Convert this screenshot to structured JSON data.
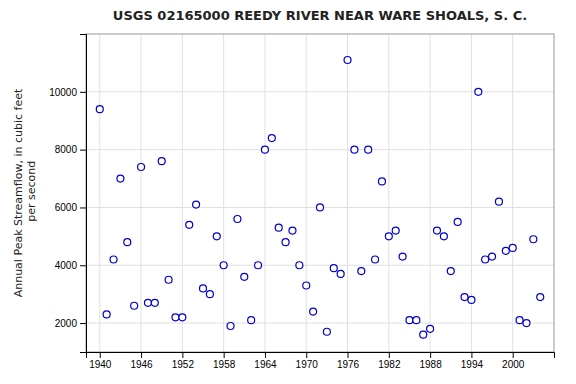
{
  "chart_data": {
    "type": "scatter",
    "title": "USGS 02165000 REEDY RIVER NEAR WARE SHOALS, S. C.",
    "ylabel": "Annual Peak Streamflow, in cubic feet\n per second",
    "xlim": [
      1938,
      2006
    ],
    "ylim": [
      1000,
      12000
    ],
    "xticks": [
      1940,
      1946,
      1952,
      1958,
      1964,
      1970,
      1976,
      1982,
      1988,
      1994,
      2000
    ],
    "yticks": [
      2000,
      4000,
      6000,
      8000,
      10000
    ],
    "color": "#0000cc",
    "marker": "open-circle",
    "grid": true,
    "x": [
      1940,
      1941,
      1942,
      1943,
      1944,
      1945,
      1946,
      1947,
      1948,
      1949,
      1950,
      1951,
      1952,
      1953,
      1954,
      1955,
      1956,
      1957,
      1958,
      1959,
      1960,
      1961,
      1962,
      1963,
      1964,
      1965,
      1966,
      1967,
      1968,
      1969,
      1970,
      1971,
      1972,
      1973,
      1974,
      1975,
      1976,
      1977,
      1978,
      1979,
      1980,
      1981,
      1982,
      1983,
      1984,
      1985,
      1986,
      1987,
      1988,
      1989,
      1990,
      1991,
      1992,
      1993,
      1994,
      1995,
      1996,
      1997,
      1998,
      1999,
      2000,
      2001,
      2002,
      2003,
      2004
    ],
    "values": [
      9400,
      2300,
      4200,
      7000,
      4800,
      2600,
      7400,
      2700,
      2700,
      7600,
      3500,
      2200,
      2200,
      5400,
      6100,
      3200,
      3000,
      5000,
      4000,
      1900,
      5600,
      3600,
      2100,
      4000,
      8000,
      8400,
      5300,
      4800,
      5200,
      4000,
      3300,
      2400,
      6000,
      1700,
      3900,
      3700,
      11100,
      8000,
      3800,
      8000,
      4200,
      6900,
      5000,
      5200,
      4300,
      2100,
      2100,
      1600,
      1800,
      5200,
      5000,
      3800,
      5500,
      2900,
      2800,
      10000,
      4200,
      4300,
      6200,
      4500,
      4600,
      2100,
      2000,
      4900,
      2900
    ]
  }
}
